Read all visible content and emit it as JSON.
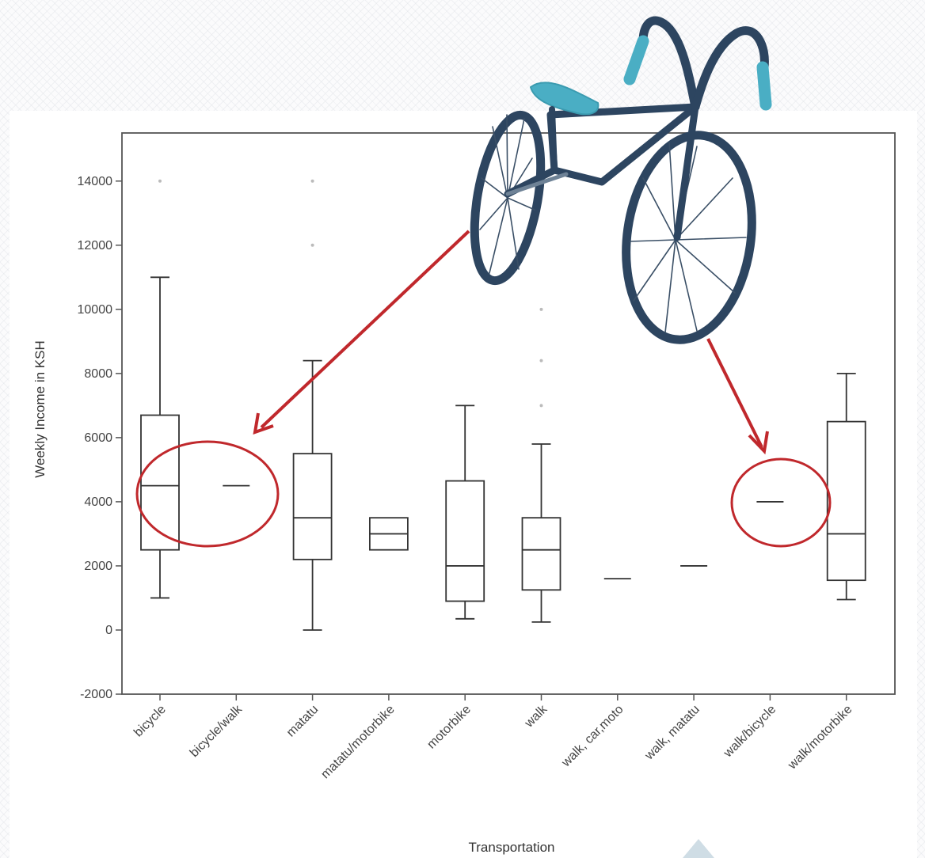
{
  "chart_data": {
    "type": "boxplot",
    "xlabel": "Transportation",
    "ylabel": "Weekly Income in KSH",
    "ylim": [
      -2000,
      15500
    ],
    "yticks": [
      -2000,
      0,
      2000,
      4000,
      6000,
      8000,
      10000,
      12000,
      14000
    ],
    "grid": false,
    "categories": [
      "bicycle",
      "bicycle/walk",
      "matatu",
      "matatu/motorbike",
      "motorbike",
      "walk",
      "walk, car,moto",
      "walk, matatu",
      "walk/bicycle",
      "walk/motorbike"
    ],
    "boxes": [
      {
        "category": "bicycle",
        "whisker_low": 1000,
        "q1": 2500,
        "median": 4500,
        "q3": 6700,
        "whisker_high": 11000,
        "outliers": [
          14000
        ]
      },
      {
        "category": "bicycle/walk",
        "median": 4500
      },
      {
        "category": "matatu",
        "whisker_low": 0,
        "q1": 2200,
        "median": 3500,
        "q3": 5500,
        "whisker_high": 8400,
        "outliers": [
          12000,
          14000
        ]
      },
      {
        "category": "matatu/motorbike",
        "q1": 2500,
        "median": 3000,
        "q3": 3500
      },
      {
        "category": "motorbike",
        "whisker_low": 350,
        "q1": 900,
        "median": 2000,
        "q3": 4650,
        "whisker_high": 7000,
        "outliers": []
      },
      {
        "category": "walk",
        "whisker_low": 250,
        "q1": 1250,
        "median": 2500,
        "q3": 3500,
        "whisker_high": 5800,
        "outliers": [
          7000,
          8400,
          10000
        ]
      },
      {
        "category": "walk, car,moto",
        "median": 1600
      },
      {
        "category": "walk, matatu",
        "median": 2000
      },
      {
        "category": "walk/bicycle",
        "median": 4000
      },
      {
        "category": "walk/motorbike",
        "whisker_low": 950,
        "q1": 1550,
        "median": 3000,
        "q3": 6500,
        "whisker_high": 8000,
        "outliers": []
      }
    ],
    "annotations": [
      {
        "type": "circle",
        "around": [
          "bicycle",
          "bicycle/walk"
        ],
        "color": "#c0282c"
      },
      {
        "type": "circle",
        "around": [
          "walk/bicycle"
        ],
        "color": "#c0282c"
      },
      {
        "type": "arrow",
        "to": "bicycle/walk",
        "color": "#c0282c"
      },
      {
        "type": "arrow",
        "to": "walk/bicycle",
        "color": "#c0282c"
      },
      {
        "type": "illustration",
        "subject": "bicycle"
      }
    ]
  },
  "colors": {
    "annotation_red": "#c0282c",
    "bike_frame": "#2d4560",
    "bike_accent": "#4aaec4",
    "axis": "#444444"
  }
}
